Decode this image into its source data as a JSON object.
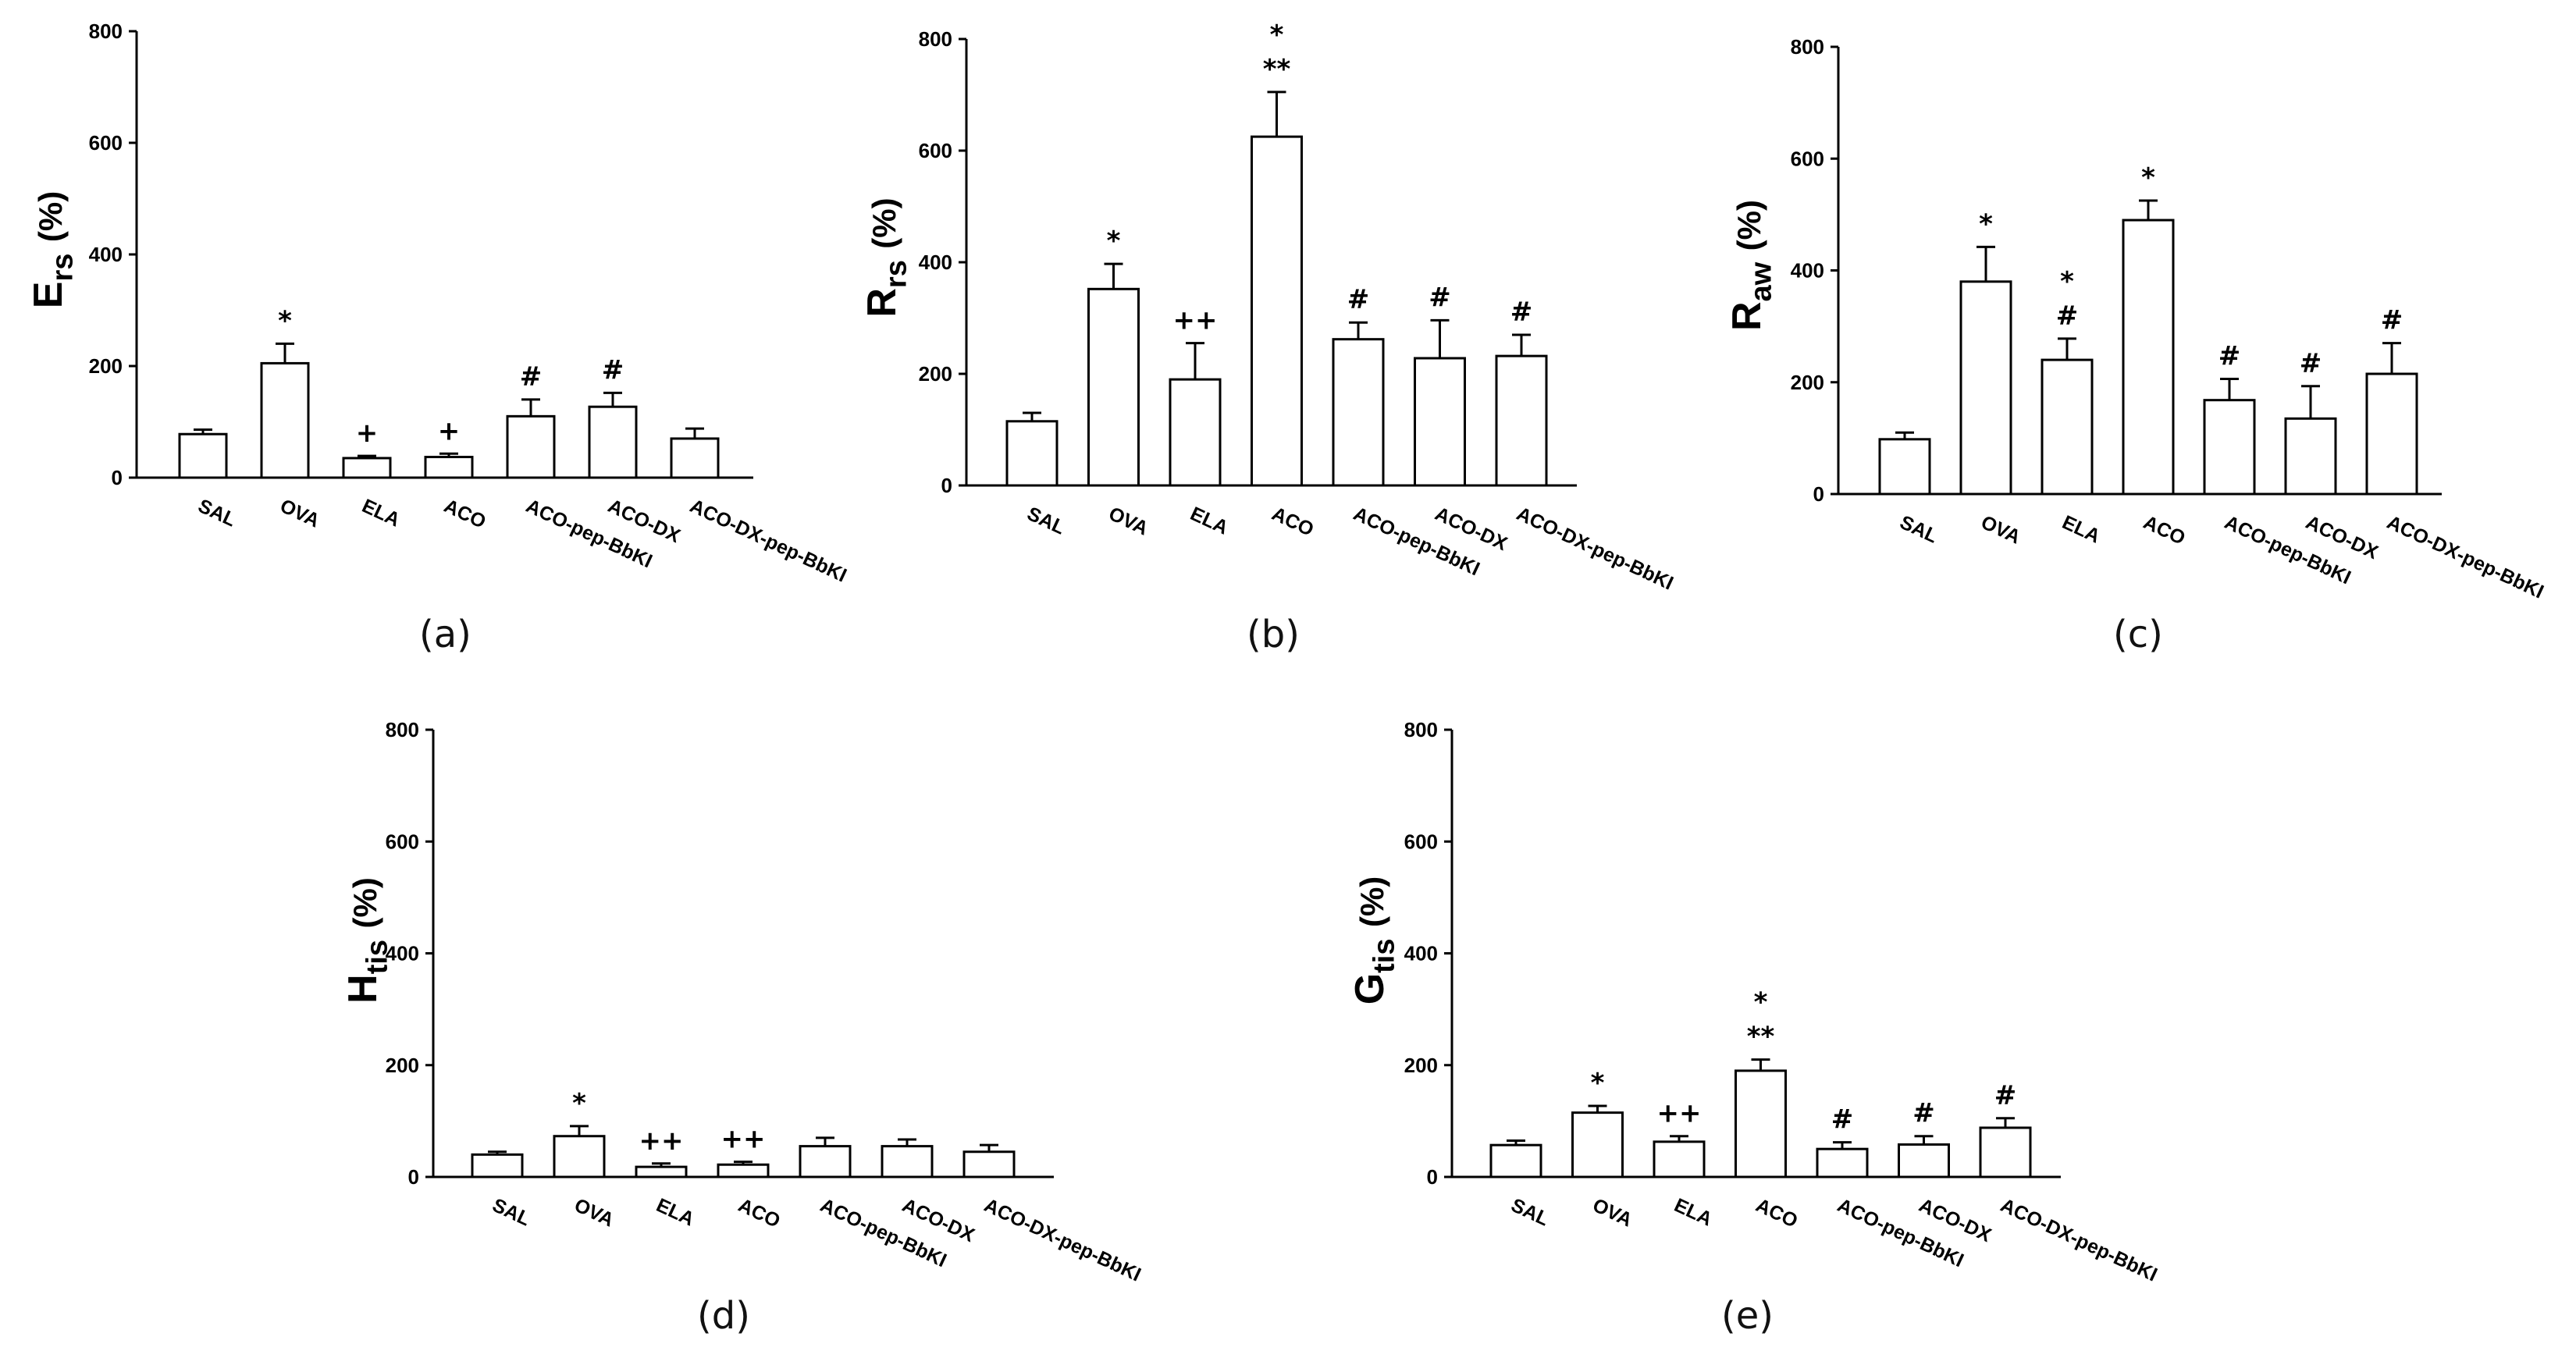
{
  "chart_data": [
    {
      "type": "bar",
      "title": "(a)",
      "ylabel_main": "E",
      "ylabel_sub": "rs",
      "ylabel_unit": "(%)",
      "ylim": [
        0,
        800
      ],
      "yticks": [
        0,
        200,
        400,
        600,
        800
      ],
      "categories": [
        "SAL",
        "OVA",
        "ELA",
        "ACO",
        "ACO-pep-BbKI",
        "ACO-DX",
        "ACO-DX-pep-BbKI"
      ],
      "values": [
        78,
        205,
        35,
        37,
        110,
        127,
        70
      ],
      "errors": [
        8,
        35,
        4,
        6,
        30,
        25,
        18
      ],
      "annotations": [
        [],
        [
          "*"
        ],
        [
          "+"
        ],
        [
          "+"
        ],
        [
          "#"
        ],
        [
          "#"
        ],
        []
      ]
    },
    {
      "type": "bar",
      "title": "(b)",
      "ylabel_main": "R",
      "ylabel_sub": "rs",
      "ylabel_unit": "(%)",
      "ylim": [
        0,
        800
      ],
      "yticks": [
        0,
        200,
        400,
        600,
        800
      ],
      "categories": [
        "SAL",
        "OVA",
        "ELA",
        "ACO",
        "ACO-pep-BbKI",
        "ACO-DX",
        "ACO-DX-pep-BbKI"
      ],
      "values": [
        115,
        352,
        190,
        625,
        262,
        228,
        232
      ],
      "errors": [
        15,
        45,
        65,
        80,
        30,
        68,
        38
      ],
      "annotations": [
        [],
        [
          "*"
        ],
        [
          "++"
        ],
        [
          "*",
          "**"
        ],
        [
          "#"
        ],
        [
          "#"
        ],
        [
          "#"
        ]
      ]
    },
    {
      "type": "bar",
      "title": "(c)",
      "ylabel_main": "R",
      "ylabel_sub": "aw",
      "ylabel_unit": "(%)",
      "ylim": [
        0,
        800
      ],
      "yticks": [
        0,
        200,
        400,
        600,
        800
      ],
      "categories": [
        "SAL",
        "OVA",
        "ELA",
        "ACO",
        "ACO-pep-BbKI",
        "ACO-DX",
        "ACO-DX-pep-BbKI"
      ],
      "values": [
        98,
        380,
        240,
        490,
        168,
        135,
        215
      ],
      "errors": [
        12,
        62,
        38,
        35,
        38,
        58,
        55
      ],
      "annotations": [
        [],
        [
          "*"
        ],
        [
          "*",
          "#"
        ],
        [
          "*"
        ],
        [
          "#"
        ],
        [
          "#"
        ],
        [
          "#"
        ]
      ]
    },
    {
      "type": "bar",
      "title": "(d)",
      "ylabel_main": "H",
      "ylabel_sub": "tis",
      "ylabel_unit": "(%)",
      "ylim": [
        0,
        800
      ],
      "yticks": [
        0,
        200,
        400,
        600,
        800
      ],
      "categories": [
        "SAL",
        "OVA",
        "ELA",
        "ACO",
        "ACO-pep-BbKI",
        "ACO-DX",
        "ACO-DX-pep-BbKI"
      ],
      "values": [
        40,
        73,
        18,
        22,
        55,
        55,
        45
      ],
      "errors": [
        5,
        18,
        6,
        5,
        15,
        12,
        12
      ],
      "annotations": [
        [],
        [
          "*"
        ],
        [
          "++"
        ],
        [
          "++"
        ],
        [],
        [],
        []
      ]
    },
    {
      "type": "bar",
      "title": "(e)",
      "ylabel_main": "G",
      "ylabel_sub": "tis",
      "ylabel_unit": "(%)",
      "ylim": [
        0,
        800
      ],
      "yticks": [
        0,
        200,
        400,
        600,
        800
      ],
      "categories": [
        "SAL",
        "OVA",
        "ELA",
        "ACO",
        "ACO-pep-BbKI",
        "ACO-DX",
        "ACO-DX-pep-BbKI"
      ],
      "values": [
        57,
        115,
        63,
        190,
        50,
        58,
        88
      ],
      "errors": [
        8,
        12,
        10,
        20,
        12,
        15,
        17
      ],
      "annotations": [
        [],
        [
          "*"
        ],
        [
          "++"
        ],
        [
          "*",
          "**"
        ],
        [
          "#"
        ],
        [
          "#"
        ],
        [
          "#"
        ]
      ]
    }
  ]
}
